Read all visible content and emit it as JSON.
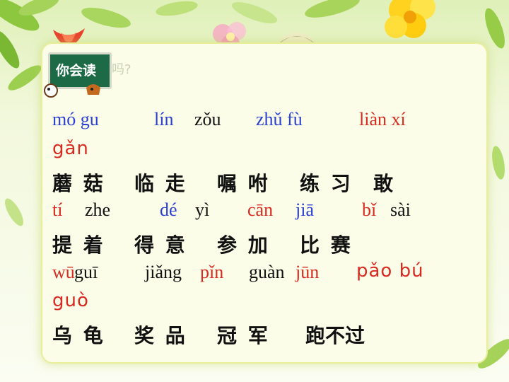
{
  "badge": {
    "label": "你会读",
    "trail": "吗?"
  },
  "rows": [
    {
      "pinyin": [
        {
          "text": "mó gu",
          "color": "#2b3fd0"
        },
        {
          "text": "lín",
          "color": "#2b3fd0"
        },
        {
          "text": "zǒu",
          "color": "#111111"
        },
        {
          "text": "zhǔ fù",
          "color": "#2b3fd0"
        },
        {
          "text": "liàn xí",
          "color": "#d82a20"
        }
      ],
      "extra_pinyin": {
        "text": "gǎn",
        "color": "#d82a20"
      },
      "words": [
        "蘑 菇",
        "临 走",
        "嘱 咐",
        "练 习",
        "敢"
      ]
    },
    {
      "pinyin": [
        {
          "text": "tí",
          "color": "#d82a20"
        },
        {
          "text": "zhe",
          "color": "#111111"
        },
        {
          "text": "dé",
          "color": "#2b3fd0"
        },
        {
          "text": "yì",
          "color": "#111111"
        },
        {
          "text": "cān",
          "color": "#d82a20"
        },
        {
          "text": "jiā",
          "color": "#2b3fd0"
        },
        {
          "text": "bǐ",
          "color": "#d82a20"
        },
        {
          "text": "sài",
          "color": "#111111"
        }
      ],
      "words": [
        "提 着",
        "得 意",
        "参 加",
        "比 赛"
      ]
    },
    {
      "pinyin": [
        {
          "text": "wū",
          "color": "#d82a20"
        },
        {
          "text": "guī",
          "color": "#111111"
        },
        {
          "text": "jiǎng",
          "color": "#111111"
        },
        {
          "text": "pǐn",
          "color": "#d82a20"
        },
        {
          "text": "guàn",
          "color": "#111111"
        },
        {
          "text": "jūn",
          "color": "#d82a20"
        },
        {
          "text": "pǎo bú",
          "color": "#d82a20"
        }
      ],
      "extra_pinyin": {
        "text": "guò",
        "color": "#d82a20"
      },
      "words": [
        "乌 龟",
        "奖 品",
        "冠 军",
        "跑不过"
      ]
    }
  ]
}
